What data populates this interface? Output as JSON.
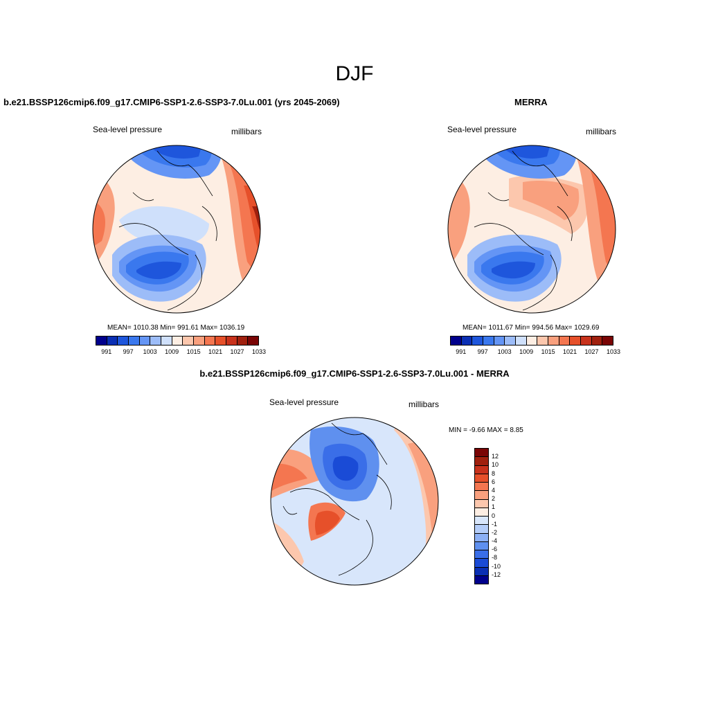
{
  "title": "DJF",
  "panels": {
    "left": {
      "title": "b.e21.BSSP126cmip6.f09_g17.CMIP6-SSP1-2.6-SSP3-7.0Lu.001 (yrs 2045-2069)",
      "variable": "Sea-level pressure",
      "units": "millibars",
      "stats": "MEAN= 1010.38  Min= 991.61  Max= 1036.19",
      "colorbar_labels": [
        "991",
        "997",
        "1003",
        "1009",
        "1015",
        "1021",
        "1027",
        "1033"
      ]
    },
    "right": {
      "title": "MERRA",
      "variable": "Sea-level pressure",
      "units": "millibars",
      "stats": "MEAN= 1011.67  Min= 994.56  Max= 1029.69",
      "colorbar_labels": [
        "991",
        "997",
        "1003",
        "1009",
        "1015",
        "1021",
        "1027",
        "1033"
      ]
    },
    "diff": {
      "title": "b.e21.BSSP126cmip6.f09_g17.CMIP6-SSP1-2.6-SSP3-7.0Lu.001 - MERRA",
      "variable": "Sea-level pressure",
      "units": "millibars",
      "stats": "MIN =  -9.66 MAX =   8.85",
      "colorbar_labels": [
        "12",
        "10",
        "8",
        "6",
        "4",
        "2",
        "1",
        "0",
        "-1",
        "-2",
        "-4",
        "-6",
        "-8",
        "-10",
        "-12"
      ]
    }
  },
  "colors": {
    "abs_scale": [
      "#00008c",
      "#0a2fb4",
      "#1e56dc",
      "#3a78ee",
      "#6495f5",
      "#9cbcf8",
      "#cfe0fb",
      "#fdeee3",
      "#fcc7ad",
      "#f9a07e",
      "#f47650",
      "#e6502a",
      "#c8321c",
      "#a0200e",
      "#7a0505"
    ],
    "diff_scale": [
      "#7a0505",
      "#a0200e",
      "#c8321c",
      "#e6502a",
      "#f47650",
      "#f9a07e",
      "#fcc7ad",
      "#fdeee3",
      "#d8e6fb",
      "#b4cdf9",
      "#8cb0f5",
      "#5f90ef",
      "#3a6ee8",
      "#1a4bd6",
      "#0a2fb4",
      "#00008c"
    ]
  }
}
